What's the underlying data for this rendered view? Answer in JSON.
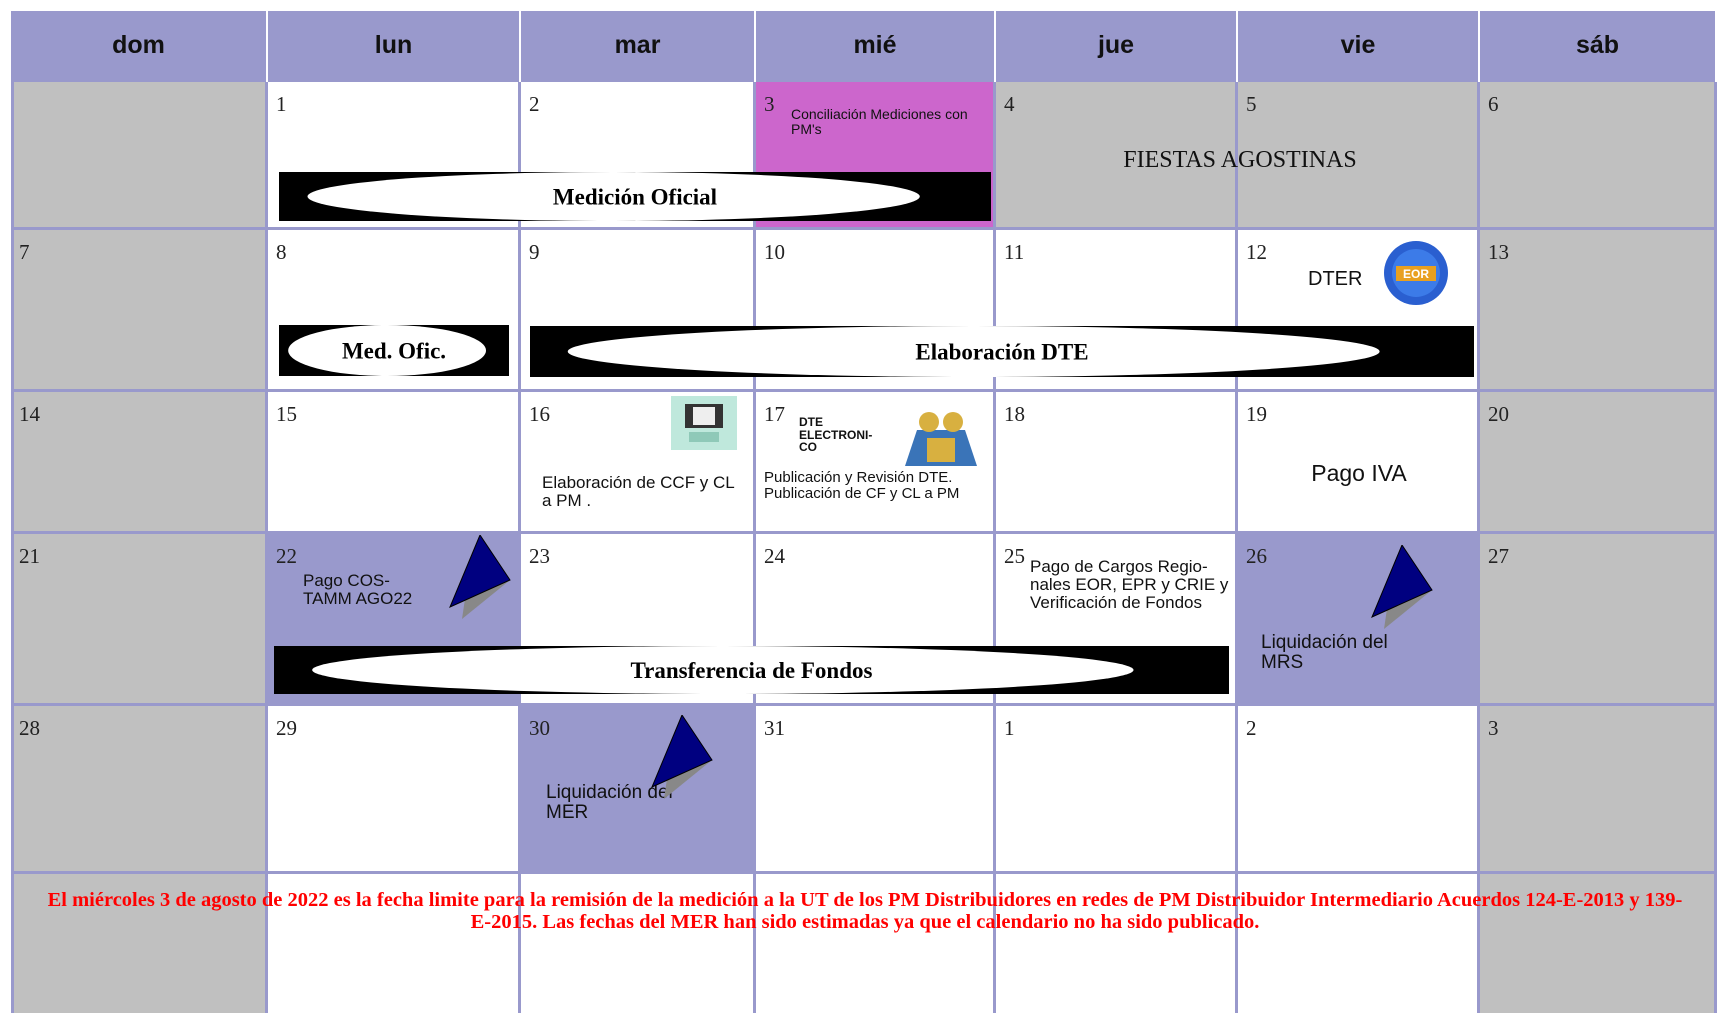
{
  "calendar": {
    "weekdays": [
      "dom",
      "lun",
      "mar",
      "mié",
      "jue",
      "vie",
      "sáb"
    ],
    "weeks": [
      [
        1,
        2,
        3,
        4,
        5,
        6
      ],
      [
        7,
        8,
        9,
        10,
        11,
        12,
        13
      ],
      [
        14,
        15,
        16,
        17,
        18,
        19,
        20
      ],
      [
        21,
        22,
        23,
        24,
        25,
        26,
        27
      ],
      [
        28,
        29,
        30,
        31,
        1,
        2,
        3
      ]
    ]
  },
  "events": {
    "conciliacion": "Conciliación Mediciones con PM's",
    "fiestas": "FIESTAS AGOSTINAS",
    "dter": "DTER",
    "eor_icon": "EOR",
    "ccf": "Elaboración de CCF y CL a PM .",
    "dte_electronico": "DTE ELECTRONI-CO",
    "publicacion": "Publicación y Revisión DTE. Publicación de CF y CL a PM",
    "pago_iva": "Pago IVA",
    "pago_costamm": "Pago COS-TAMM AGO22",
    "cargos": "Pago de Cargos Regio-nales EOR, EPR y CRIE y Verificación de Fondos",
    "liq_mrs": "Liquidación del MRS",
    "liq_mer": "Liquidación del MER"
  },
  "banners": [
    "Medición Oficial",
    "Med. Ofic.",
    "Elaboración DTE",
    "Transferencia de Fondos"
  ],
  "note": "El miércoles 3 de agosto de 2022 es la fecha limite para la remisión de la medición a la UT de los PM Distribuidores en redes de PM Distribuidor Intermediario Acuerdos 124-E-2013 y 139-E-2015. Las fechas del MER han sido estimadas ya que el calendario no ha sido publicado."
}
